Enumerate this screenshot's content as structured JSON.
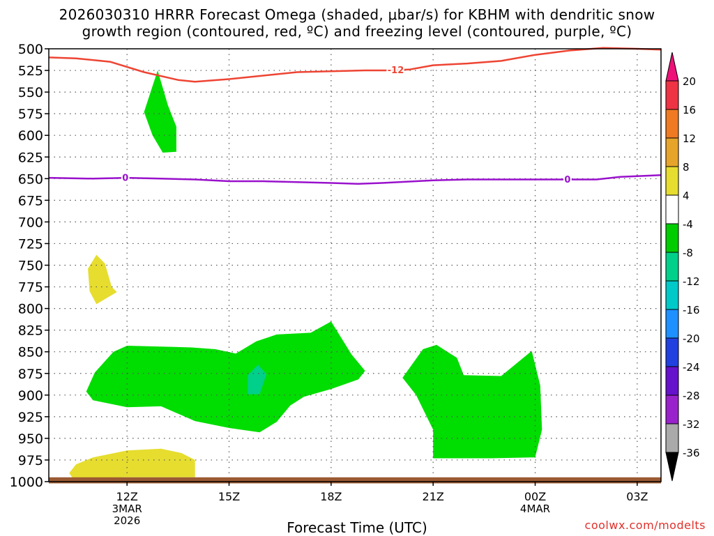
{
  "title_line1": "2026030310 HRRR Forecast Omega (shaded, μbar/s) for KBHM with dendritic snow",
  "title_line2": "growth region (contoured, red, ºC) and freezing level (contoured, purple, ºC)",
  "watermark": "coolwx.com/modelts",
  "chart_data": {
    "type": "time-height cross section",
    "xlabel": "Forecast Time (UTC)",
    "ylabel": "",
    "x_range_hours": [
      9.7,
      27.7
    ],
    "y_range_mb": [
      500,
      1000
    ],
    "y_ticks": [
      500,
      525,
      550,
      575,
      600,
      625,
      650,
      675,
      700,
      725,
      750,
      775,
      800,
      825,
      850,
      875,
      900,
      925,
      950,
      975,
      1000
    ],
    "x_ticks": [
      {
        "hour": 12,
        "lines": [
          "12Z",
          "3MAR",
          "2026"
        ]
      },
      {
        "hour": 15,
        "lines": [
          "15Z"
        ]
      },
      {
        "hour": 18,
        "lines": [
          "18Z"
        ]
      },
      {
        "hour": 21,
        "lines": [
          "21Z"
        ]
      },
      {
        "hour": 24,
        "lines": [
          "00Z",
          "4MAR"
        ]
      },
      {
        "hour": 27,
        "lines": [
          "03Z"
        ]
      }
    ],
    "grid": true,
    "contours": [
      {
        "name": "dendritic snow growth region",
        "value_label": "-12",
        "color": "#ee4433",
        "label_hour": 19.9,
        "points": [
          [
            9.7,
            510
          ],
          [
            10.5,
            511
          ],
          [
            11.5,
            515
          ],
          [
            12.5,
            527
          ],
          [
            13.5,
            536
          ],
          [
            14.0,
            538
          ],
          [
            15.0,
            535
          ],
          [
            16.0,
            531
          ],
          [
            17.0,
            527
          ],
          [
            18.0,
            526
          ],
          [
            19.0,
            525
          ],
          [
            19.6,
            525
          ],
          [
            20.3,
            524
          ],
          [
            21.0,
            519
          ],
          [
            22.0,
            517
          ],
          [
            23.0,
            514
          ],
          [
            24.0,
            507
          ],
          [
            25.0,
            502
          ],
          [
            26.0,
            499
          ],
          [
            27.0,
            500
          ],
          [
            27.7,
            501
          ]
        ]
      },
      {
        "name": "freezing level",
        "value_label": "0",
        "color": "#9911cc",
        "label_hour": 11.95,
        "label_hour2": 24.95,
        "points": [
          [
            9.7,
            649
          ],
          [
            11.0,
            650
          ],
          [
            12.0,
            649
          ],
          [
            13.0,
            650
          ],
          [
            14.0,
            651
          ],
          [
            15.0,
            653
          ],
          [
            16.0,
            653
          ],
          [
            17.0,
            654
          ],
          [
            18.0,
            655
          ],
          [
            18.8,
            656
          ],
          [
            19.5,
            655
          ],
          [
            20.5,
            653
          ],
          [
            21.0,
            652
          ],
          [
            22.0,
            651
          ],
          [
            23.0,
            651
          ],
          [
            24.0,
            651
          ],
          [
            25.0,
            651
          ],
          [
            25.8,
            651
          ],
          [
            26.5,
            648
          ],
          [
            27.7,
            646
          ]
        ]
      }
    ],
    "shaded_regions": [
      {
        "range": "-8 to -4",
        "color": "#00dd00",
        "points": [
          [
            12.5,
            573
          ],
          [
            12.9,
            525
          ],
          [
            13.2,
            565
          ],
          [
            13.45,
            590
          ],
          [
            13.45,
            619
          ],
          [
            13.05,
            620
          ],
          [
            12.75,
            600
          ]
        ]
      },
      {
        "range": "-8 to -4",
        "color": "#00dd00",
        "points": [
          [
            10.8,
            896
          ],
          [
            11.05,
            874
          ],
          [
            11.6,
            850
          ],
          [
            12.0,
            843
          ],
          [
            13.0,
            844
          ],
          [
            13.9,
            845
          ],
          [
            14.6,
            847
          ],
          [
            15.2,
            852
          ],
          [
            15.8,
            838
          ],
          [
            16.4,
            830
          ],
          [
            17.4,
            828
          ],
          [
            18.0,
            815
          ],
          [
            18.6,
            853
          ],
          [
            19.0,
            872
          ],
          [
            18.8,
            882
          ],
          [
            18.0,
            893
          ],
          [
            17.2,
            902
          ],
          [
            16.8,
            912
          ],
          [
            16.4,
            931
          ],
          [
            15.9,
            943
          ],
          [
            15.0,
            938
          ],
          [
            14.0,
            930
          ],
          [
            13.0,
            913
          ],
          [
            12.0,
            914
          ],
          [
            11.0,
            906
          ]
        ]
      },
      {
        "range": "-12 to -8",
        "color": "#00d08a",
        "points": [
          [
            15.55,
            877
          ],
          [
            15.85,
            865
          ],
          [
            16.1,
            876
          ],
          [
            15.9,
            899
          ],
          [
            15.55,
            899
          ]
        ]
      },
      {
        "range": "-8 to -4",
        "color": "#00dd00",
        "points": [
          [
            20.1,
            880
          ],
          [
            20.7,
            847
          ],
          [
            21.1,
            842
          ],
          [
            21.7,
            857
          ],
          [
            21.9,
            877
          ],
          [
            23.0,
            878
          ],
          [
            23.9,
            849
          ],
          [
            24.15,
            889
          ],
          [
            24.2,
            940
          ],
          [
            24.0,
            972
          ],
          [
            22.7,
            973
          ],
          [
            21.0,
            973
          ],
          [
            21.0,
            940
          ],
          [
            20.5,
            900
          ]
        ]
      },
      {
        "range": "4 to 8",
        "color": "#e6dd2f",
        "points": [
          [
            10.85,
            754
          ],
          [
            11.1,
            738
          ],
          [
            11.35,
            748
          ],
          [
            11.55,
            775
          ],
          [
            11.7,
            781
          ],
          [
            11.1,
            795
          ],
          [
            10.9,
            780
          ]
        ]
      },
      {
        "range": "4 to 8",
        "color": "#e6dd2f",
        "points": [
          [
            10.3,
            990
          ],
          [
            10.5,
            980
          ],
          [
            11.0,
            972
          ],
          [
            12.0,
            964
          ],
          [
            13.0,
            962
          ],
          [
            13.6,
            967
          ],
          [
            14.0,
            975
          ],
          [
            14.0,
            995
          ],
          [
            12.0,
            995
          ],
          [
            10.4,
            996
          ]
        ]
      }
    ],
    "ground_band": {
      "from_mb": 995,
      "to_mb": 1002,
      "color": "#9b5a32"
    },
    "colorbar": {
      "labels": [
        "20",
        "16",
        "12",
        "8",
        "4",
        "-4",
        "-8",
        "-12",
        "-16",
        "-20",
        "-24",
        "-28",
        "-32",
        "-36"
      ],
      "colors": [
        "#ee1178",
        "#ee3344",
        "#ef7a22",
        "#e6a52a",
        "#e6dd2f",
        "#ffffff",
        "#00cc00",
        "#00d08a",
        "#00c9c9",
        "#1e90ff",
        "#2040e0",
        "#6611cc",
        "#9922cc",
        "#aaaaaa",
        "#000000"
      ]
    }
  }
}
